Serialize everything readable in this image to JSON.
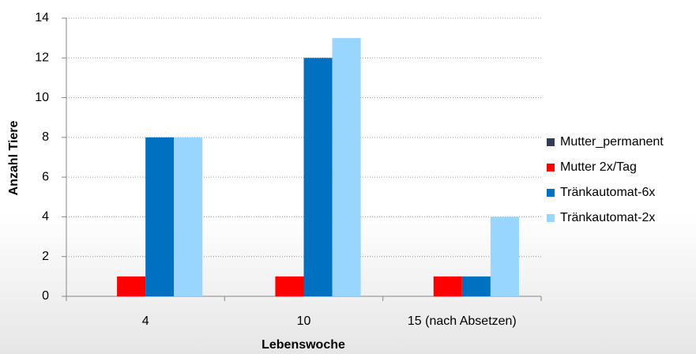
{
  "chart_data": {
    "type": "bar",
    "x_label": "Lebenswoche",
    "y_label": "Anzahl Tiere",
    "categories": [
      "4",
      "10",
      "15 (nach Absetzen)"
    ],
    "series": [
      {
        "name": "Mutter_permanent",
        "color": "#333f50",
        "values": [
          0,
          0,
          0
        ]
      },
      {
        "name": "Mutter 2x/Tag",
        "color": "#ff0000",
        "values": [
          1,
          1,
          1
        ]
      },
      {
        "name": "Tränkautomat-6x",
        "color": "#0070c0",
        "values": [
          8,
          12,
          1
        ]
      },
      {
        "name": "Tränkautomat-2x",
        "color": "#99d6ff",
        "values": [
          8,
          13,
          4
        ]
      }
    ],
    "ylim": [
      0,
      14
    ],
    "yticks": [
      0,
      2,
      4,
      6,
      8,
      10,
      12,
      14
    ],
    "grid": true,
    "legend": "right"
  }
}
